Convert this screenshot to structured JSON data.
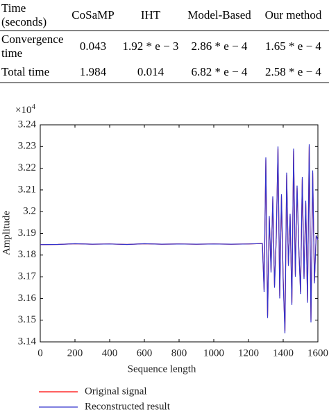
{
  "table": {
    "header": [
      "Time (seconds)",
      "CoSaMP",
      "IHT",
      "Model-Based",
      "Our method"
    ],
    "rows": [
      [
        "Convergence time",
        "0.043",
        "1.92 * e − 3",
        "2.86 * e − 4",
        "1.65 * e − 4"
      ],
      [
        "Total time",
        "1.984",
        "0.014",
        "6.82 * e − 4",
        "2.58 * e − 4"
      ]
    ]
  },
  "chart_data": {
    "type": "line",
    "xlabel": "Sequence length",
    "ylabel": "Amplitude",
    "y_multiplier": {
      "base": "×10",
      "exponent": "4"
    },
    "x": [
      0,
      100,
      200,
      300,
      400,
      500,
      600,
      700,
      800,
      900,
      1000,
      1100,
      1200,
      1280,
      1290,
      1300,
      1310,
      1320,
      1330,
      1340,
      1350,
      1360,
      1370,
      1380,
      1390,
      1400,
      1410,
      1420,
      1430,
      1440,
      1450,
      1460,
      1470,
      1480,
      1490,
      1500,
      1510,
      1520,
      1530,
      1540,
      1550,
      1560,
      1570,
      1580,
      1590,
      1600
    ],
    "series": [
      {
        "name": "Original signal",
        "color": "#ff0000",
        "values": [
          3.1848,
          3.1849,
          3.1852,
          3.185,
          3.1851,
          3.1849,
          3.1852,
          3.185,
          3.1851,
          3.185,
          3.1851,
          3.185,
          3.1851,
          3.1853,
          3.164,
          3.224,
          3.152,
          3.197,
          3.173,
          3.206,
          3.166,
          3.188,
          3.229,
          3.161,
          3.207,
          3.169,
          3.145,
          3.217,
          3.176,
          3.198,
          3.158,
          3.228,
          3.171,
          3.211,
          3.183,
          3.163,
          3.215,
          3.17,
          3.204,
          3.159,
          3.23,
          3.15,
          3.218,
          3.168,
          3.189,
          3.187
        ]
      },
      {
        "name": "Reconstructed result",
        "color": "#3333cc",
        "values": [
          3.1848,
          3.1849,
          3.1852,
          3.185,
          3.1851,
          3.1849,
          3.1852,
          3.185,
          3.1851,
          3.185,
          3.1851,
          3.185,
          3.1851,
          3.1853,
          3.163,
          3.225,
          3.151,
          3.198,
          3.172,
          3.207,
          3.165,
          3.188,
          3.23,
          3.16,
          3.208,
          3.168,
          3.144,
          3.218,
          3.175,
          3.199,
          3.157,
          3.229,
          3.17,
          3.212,
          3.183,
          3.162,
          3.216,
          3.169,
          3.205,
          3.158,
          3.231,
          3.149,
          3.219,
          3.167,
          3.189,
          3.187
        ]
      }
    ],
    "xlim": [
      0,
      1600
    ],
    "xticks": [
      0,
      200,
      400,
      600,
      800,
      1000,
      1200,
      1400,
      1600
    ],
    "ylim": [
      3.14,
      3.24
    ],
    "yticks": [
      3.14,
      3.15,
      3.16,
      3.17,
      3.18,
      3.19,
      3.2,
      3.21,
      3.22,
      3.23,
      3.24
    ],
    "legend": "bottom-left"
  }
}
